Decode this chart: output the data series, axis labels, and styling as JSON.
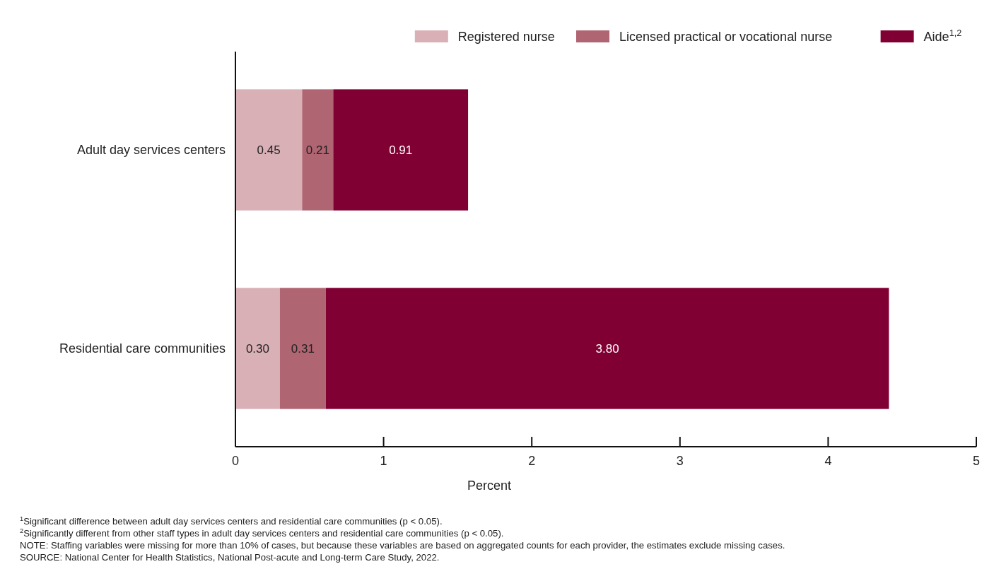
{
  "chart_data": {
    "type": "bar",
    "orientation": "horizontal",
    "stacked": true,
    "xlabel": "Percent",
    "categories": [
      "Adult day services centers",
      "Residential care communities"
    ],
    "series": [
      {
        "name": "Registered nurse",
        "color": "#d9b0b6",
        "values": [
          0.45,
          0.3
        ],
        "value_labels": [
          "0.45",
          "0.30"
        ]
      },
      {
        "name": "Licensed practical or vocational nurse",
        "color": "#b06572",
        "values": [
          0.21,
          0.31
        ],
        "value_labels": [
          "0.21",
          "0.31"
        ]
      },
      {
        "name": "Aide$^{1,2}$",
        "color": "#800033",
        "values": [
          0.91,
          3.8
        ],
        "value_labels": [
          "0.91",
          "3.80"
        ]
      }
    ],
    "xlim": [
      0,
      5
    ],
    "xticks": [
      0,
      1,
      2,
      3,
      4,
      5
    ],
    "grid": false,
    "legend": "top right",
    "annotations": [
      "$^{1}$Significant difference between adult day services centers and residential care communities (p < 0.05).",
      "$^{2}$Significantly different from other staff types in adult day services centers and residential care communities (p < 0.05).",
      "NOTE: Staffing variables were missing for more than 10% of cases, but because these variables are based on aggregated counts for each provider, the estimates exclude missing cases.",
      "SOURCE: National Center for Health Statistics, National Post-acute and Long-term Care Study, 2022."
    ]
  }
}
